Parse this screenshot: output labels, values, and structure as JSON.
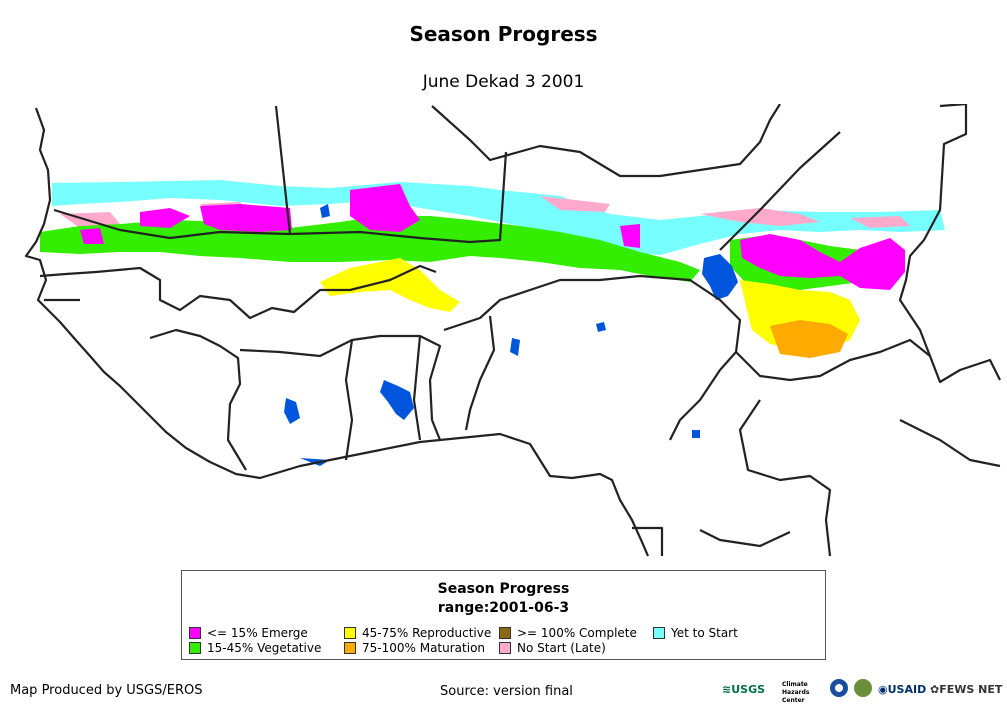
{
  "title": "Season Progress",
  "subtitle": "June Dekad 3 2001",
  "legend": {
    "title": "Season Progress",
    "range": "range:2001-06-3",
    "items": [
      {
        "label": "<= 15% Emerge",
        "color": "#ff00ff"
      },
      {
        "label": "15-45% Vegetative",
        "color": "#33ee00"
      },
      {
        "label": "45-75% Reproductive",
        "color": "#ffff00"
      },
      {
        "label": "75-100% Maturation",
        "color": "#ffaa00"
      },
      {
        "label": ">= 100% Complete",
        "color": "#8b6914"
      },
      {
        "label": "No Start (Late)",
        "color": "#ffaacc"
      },
      {
        "label": "Yet to Start",
        "color": "#77ffff"
      }
    ]
  },
  "map": {
    "water_color": "#0055dd",
    "border_color": "#222222"
  },
  "footer": {
    "produced_by": "Map Produced by USGS/EROS",
    "source": "Source: version final"
  },
  "logos": {
    "usgs": "USGS",
    "chc": "Climate Hazards Center",
    "noaa": "NOAA",
    "usaid": "USAID",
    "fewsnet": "FEWS NET"
  }
}
